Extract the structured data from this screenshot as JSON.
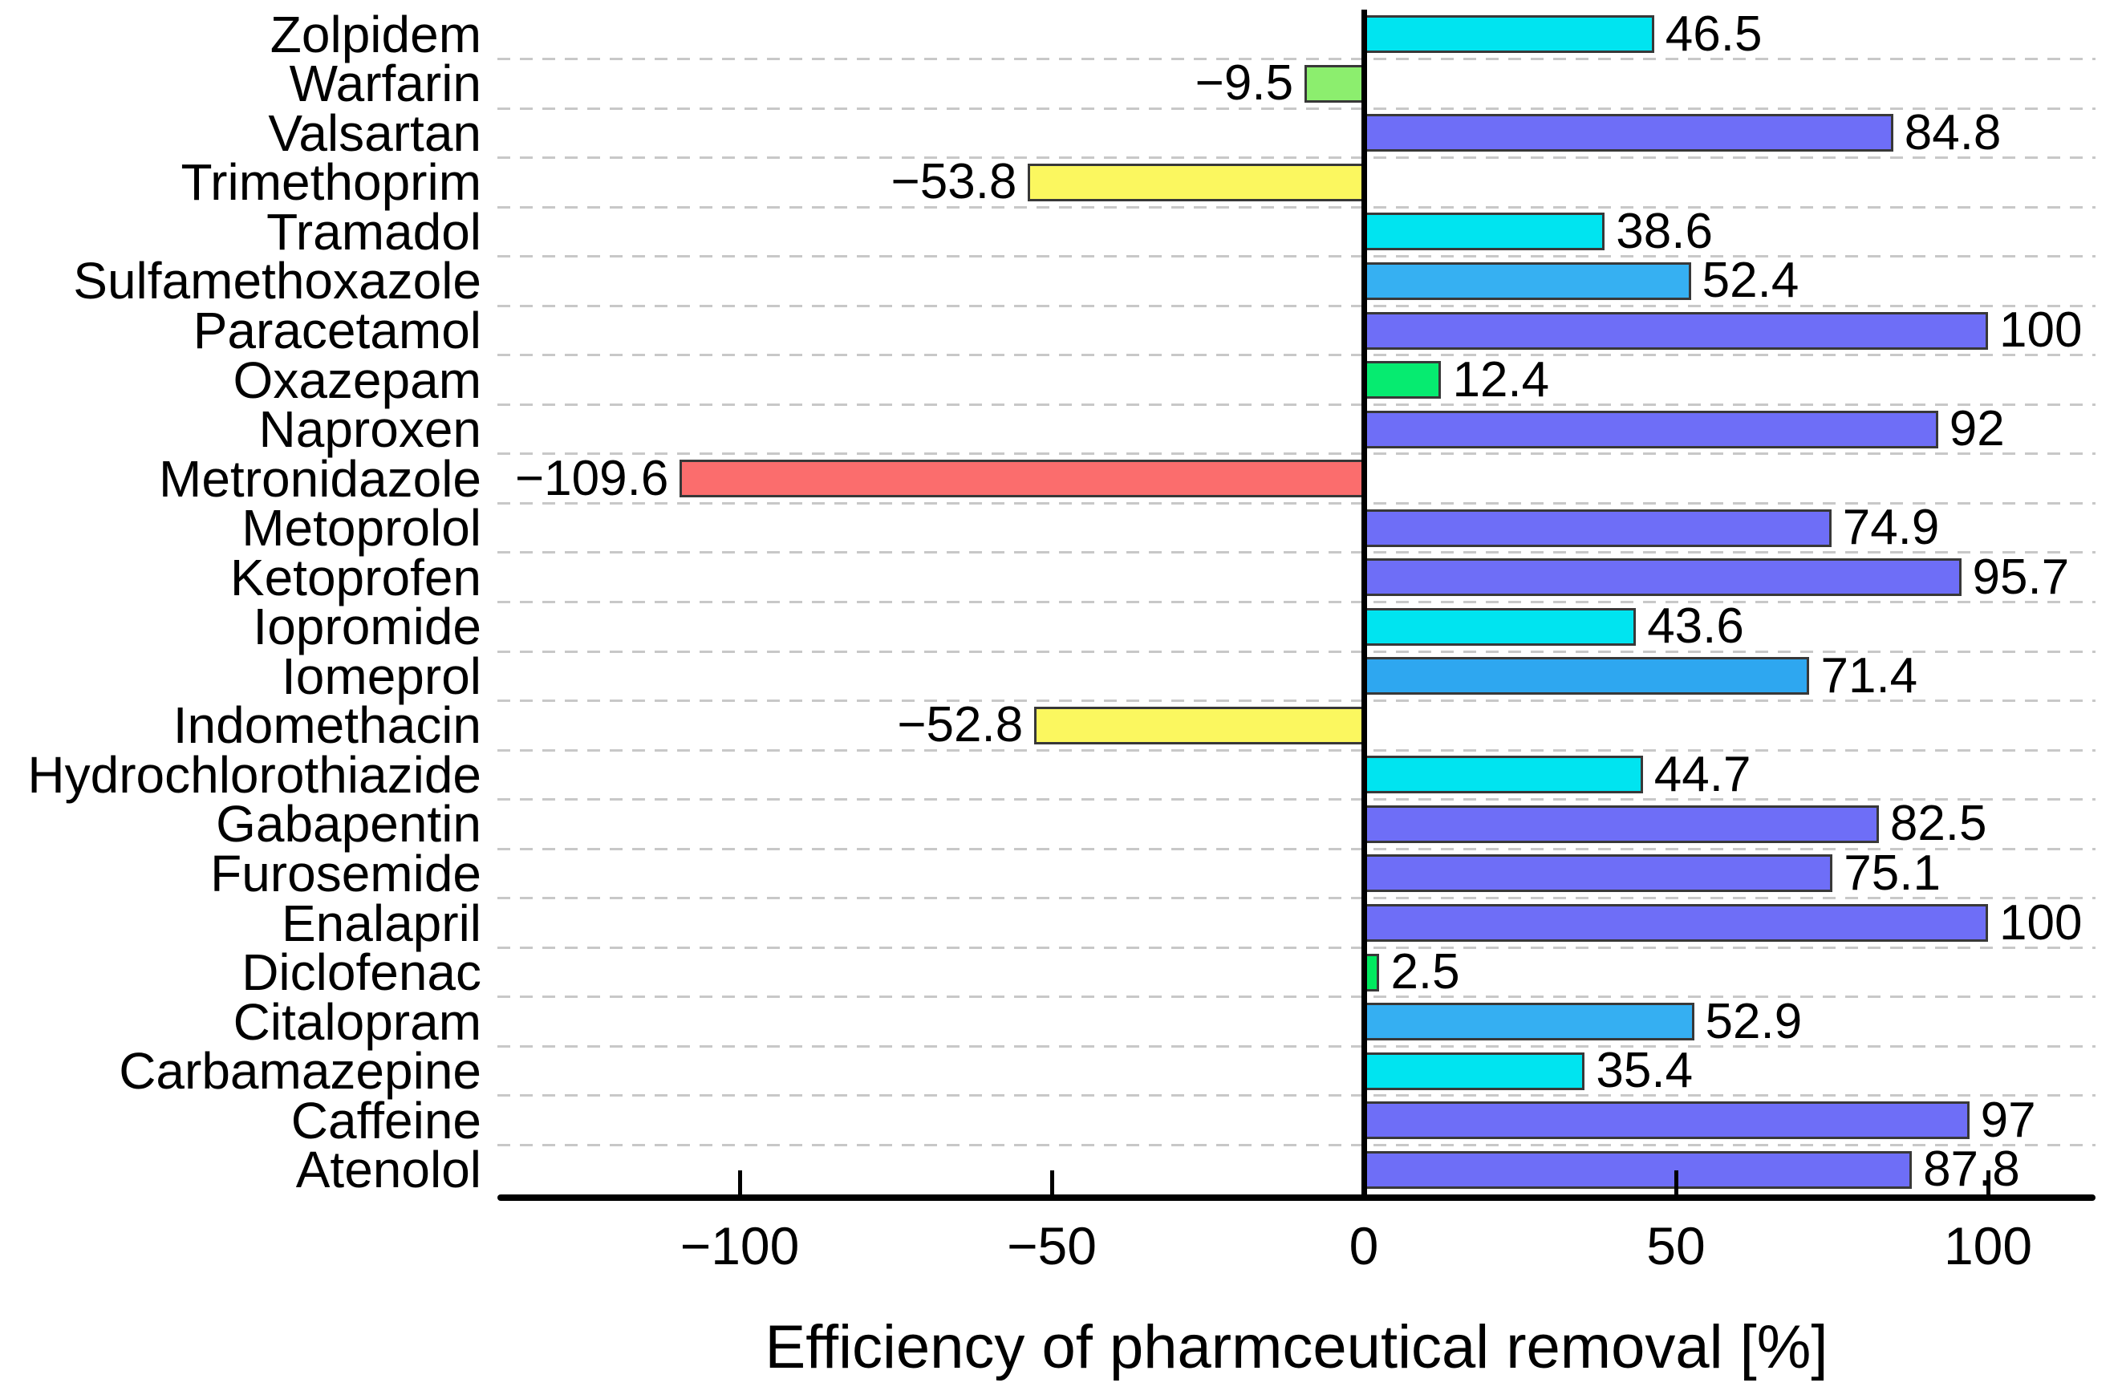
{
  "chart_data": {
    "type": "bar",
    "orientation": "horizontal",
    "title": "",
    "xlabel": "Efficiency of pharmceutical removal [%]",
    "ylabel": "",
    "xlim": [
      -139,
      117
    ],
    "grid": "horizontal-dashed",
    "legend": "none",
    "x_ticks": [
      {
        "value": -100,
        "label": "−100"
      },
      {
        "value": -50,
        "label": "−50"
      },
      {
        "value": 0,
        "label": "0"
      },
      {
        "value": 50,
        "label": "50"
      },
      {
        "value": 100,
        "label": "100"
      }
    ],
    "bars": [
      {
        "category": "Zolpidem",
        "value": 46.5,
        "label": "46.5",
        "color": "#00E4F0"
      },
      {
        "category": "Warfarin",
        "value": -9.5,
        "label": "−9.5",
        "color": "#8CEE6E"
      },
      {
        "category": "Valsartan",
        "value": 84.8,
        "label": "84.8",
        "color": "#6E6EF7"
      },
      {
        "category": "Trimethoprim",
        "value": -53.8,
        "label": "−53.8",
        "color": "#FBF75F"
      },
      {
        "category": "Tramadol",
        "value": 38.6,
        "label": "38.6",
        "color": "#00E4F0"
      },
      {
        "category": "Sulfamethoxazole",
        "value": 52.4,
        "label": "52.4",
        "color": "#36B0F2"
      },
      {
        "category": "Paracetamol",
        "value": 100,
        "label": "100",
        "color": "#6E6EF7"
      },
      {
        "category": "Oxazepam",
        "value": 12.4,
        "label": "12.4",
        "color": "#06EB70"
      },
      {
        "category": "Naproxen",
        "value": 92,
        "label": "92",
        "color": "#6E6EF7"
      },
      {
        "category": "Metronidazole",
        "value": -109.6,
        "label": "−109.6",
        "color": "#FB6D6D"
      },
      {
        "category": "Metoprolol",
        "value": 74.9,
        "label": "74.9",
        "color": "#6E6EF7"
      },
      {
        "category": "Ketoprofen",
        "value": 95.7,
        "label": "95.7",
        "color": "#6E6EF7"
      },
      {
        "category": "Iopromide",
        "value": 43.6,
        "label": "43.6",
        "color": "#00E4F0"
      },
      {
        "category": "Iomeprol",
        "value": 71.4,
        "label": "71.4",
        "color": "#2EA7F0"
      },
      {
        "category": "Indomethacin",
        "value": -52.8,
        "label": "−52.8",
        "color": "#FBF75F"
      },
      {
        "category": "Hydrochlorothiazide",
        "value": 44.7,
        "label": "44.7",
        "color": "#00E4F0"
      },
      {
        "category": "Gabapentin",
        "value": 82.5,
        "label": "82.5",
        "color": "#6E6EF7"
      },
      {
        "category": "Furosemide",
        "value": 75.1,
        "label": "75.1",
        "color": "#6E6EF7"
      },
      {
        "category": "Enalapril",
        "value": 100,
        "label": "100",
        "color": "#6E6EF7"
      },
      {
        "category": "Diclofenac",
        "value": 2.5,
        "label": "2.5",
        "color": "#00E95F"
      },
      {
        "category": "Citalopram",
        "value": 52.9,
        "label": "52.9",
        "color": "#35AFF2"
      },
      {
        "category": "Carbamazepine",
        "value": 35.4,
        "label": "35.4",
        "color": "#00E4F0"
      },
      {
        "category": "Caffeine",
        "value": 97,
        "label": "97",
        "color": "#6E6EF7"
      },
      {
        "category": "Atenolol",
        "value": 87.8,
        "label": "87.8",
        "color": "#6E6EF7"
      }
    ],
    "colors": {
      "axis": "#000000",
      "gridline": "#c8c8c8",
      "bar_border": "#383838",
      "background": "#ffffff",
      "text": "#000000"
    }
  }
}
